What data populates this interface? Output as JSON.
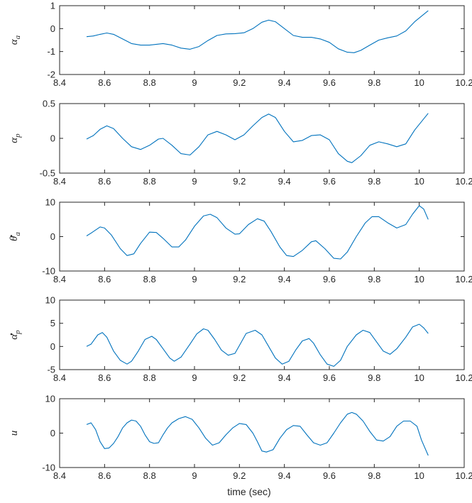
{
  "colors": {
    "line": "#0072BD",
    "axes": "#262626",
    "background": "#ffffff"
  },
  "xlabel": "time (sec)",
  "chart_data": [
    {
      "type": "line",
      "ylabel": "α",
      "ylabel_sub": "a",
      "ylabel_dot": false,
      "xlim": [
        8.4,
        10.2
      ],
      "ylim": [
        -2,
        1
      ],
      "xticks": [
        "8.4",
        "8.6",
        "8.8",
        "9",
        "9.2",
        "9.4",
        "9.6",
        "9.8",
        "10",
        "10.2"
      ],
      "yticks": [
        "-2",
        "-1",
        "0",
        "1"
      ],
      "x": [
        8.52,
        8.55,
        8.58,
        8.61,
        8.64,
        8.68,
        8.72,
        8.76,
        8.8,
        8.86,
        8.9,
        8.94,
        8.98,
        9.02,
        9.06,
        9.1,
        9.14,
        9.18,
        9.22,
        9.26,
        9.3,
        9.33,
        9.36,
        9.4,
        9.44,
        9.48,
        9.52,
        9.56,
        9.6,
        9.64,
        9.68,
        9.71,
        9.74,
        9.78,
        9.82,
        9.86,
        9.9,
        9.94,
        9.98,
        10.04
      ],
      "y": [
        -0.35,
        -0.32,
        -0.25,
        -0.19,
        -0.25,
        -0.45,
        -0.65,
        -0.72,
        -0.72,
        -0.65,
        -0.72,
        -0.85,
        -0.9,
        -0.78,
        -0.52,
        -0.3,
        -0.23,
        -0.22,
        -0.18,
        0,
        0.28,
        0.37,
        0.3,
        0,
        -0.3,
        -0.38,
        -0.38,
        -0.45,
        -0.6,
        -0.88,
        -1.03,
        -1.05,
        -0.95,
        -0.72,
        -0.5,
        -0.4,
        -0.32,
        -0.1,
        0.3,
        0.78
      ]
    },
    {
      "type": "line",
      "ylabel": "α",
      "ylabel_sub": "p",
      "ylabel_dot": false,
      "xlim": [
        8.4,
        10.2
      ],
      "ylim": [
        -0.5,
        0.5
      ],
      "xticks": [
        "8.4",
        "8.6",
        "8.8",
        "9",
        "9.2",
        "9.4",
        "9.6",
        "9.8",
        "10",
        "10.2"
      ],
      "yticks": [
        "-0.5",
        "0",
        "0.5"
      ],
      "x": [
        8.52,
        8.55,
        8.58,
        8.61,
        8.64,
        8.68,
        8.72,
        8.76,
        8.8,
        8.84,
        8.86,
        8.9,
        8.94,
        8.98,
        9.02,
        9.06,
        9.1,
        9.14,
        9.18,
        9.22,
        9.26,
        9.3,
        9.33,
        9.36,
        9.4,
        9.44,
        9.48,
        9.52,
        9.56,
        9.6,
        9.64,
        9.68,
        9.7,
        9.74,
        9.78,
        9.82,
        9.86,
        9.9,
        9.94,
        9.98,
        10.04
      ],
      "y": [
        -0.01,
        0.04,
        0.13,
        0.18,
        0.14,
        0.0,
        -0.12,
        -0.16,
        -0.1,
        -0.01,
        0.0,
        -0.1,
        -0.22,
        -0.24,
        -0.12,
        0.05,
        0.1,
        0.05,
        -0.02,
        0.05,
        0.18,
        0.3,
        0.35,
        0.3,
        0.1,
        -0.05,
        -0.03,
        0.04,
        0.05,
        -0.02,
        -0.22,
        -0.33,
        -0.35,
        -0.25,
        -0.1,
        -0.05,
        -0.08,
        -0.12,
        -0.08,
        0.12,
        0.36
      ]
    },
    {
      "type": "line",
      "ylabel": "θ",
      "ylabel_sub": "a",
      "ylabel_dot": true,
      "xlim": [
        8.4,
        10.2
      ],
      "ylim": [
        -10,
        10
      ],
      "xticks": [
        "8.4",
        "8.6",
        "8.8",
        "9",
        "9.2",
        "9.4",
        "9.6",
        "9.8",
        "10",
        "10.2"
      ],
      "yticks": [
        "-10",
        "0",
        "10"
      ],
      "x": [
        8.52,
        8.54,
        8.58,
        8.6,
        8.63,
        8.67,
        8.7,
        8.73,
        8.76,
        8.8,
        8.83,
        8.86,
        8.9,
        8.93,
        8.96,
        9.0,
        9.04,
        9.07,
        9.1,
        9.14,
        9.18,
        9.2,
        9.24,
        9.28,
        9.31,
        9.34,
        9.38,
        9.41,
        9.44,
        9.48,
        9.52,
        9.54,
        9.58,
        9.62,
        9.65,
        9.68,
        9.72,
        9.76,
        9.79,
        9.82,
        9.86,
        9.9,
        9.94,
        9.97,
        10.0,
        10.02,
        10.04
      ],
      "y": [
        0.2,
        1.0,
        2.8,
        2.5,
        0.5,
        -3.5,
        -5.5,
        -5.0,
        -2.0,
        1.3,
        1.2,
        -0.5,
        -3.0,
        -3.0,
        -1.0,
        3.0,
        6.0,
        6.5,
        5.5,
        2.5,
        0.7,
        0.8,
        3.5,
        5.2,
        4.5,
        1.5,
        -3.0,
        -5.5,
        -5.8,
        -4.0,
        -1.5,
        -1.2,
        -3.5,
        -6.3,
        -6.5,
        -4.5,
        0.0,
        4.0,
        5.8,
        5.8,
        4.0,
        2.5,
        3.5,
        6.5,
        9.0,
        8.0,
        5.0
      ]
    },
    {
      "type": "line",
      "ylabel": "α",
      "ylabel_sub": "p",
      "ylabel_dot": true,
      "xlim": [
        8.4,
        10.2
      ],
      "ylim": [
        -5,
        10
      ],
      "xticks": [
        "8.4",
        "8.6",
        "8.8",
        "9",
        "9.2",
        "9.4",
        "9.6",
        "9.8",
        "10",
        "10.2"
      ],
      "yticks": [
        "-5",
        "0",
        "5",
        "10"
      ],
      "x": [
        8.52,
        8.54,
        8.57,
        8.59,
        8.61,
        8.64,
        8.67,
        8.7,
        8.72,
        8.75,
        8.78,
        8.81,
        8.83,
        8.86,
        8.89,
        8.91,
        8.94,
        8.98,
        9.01,
        9.04,
        9.06,
        9.09,
        9.12,
        9.15,
        9.18,
        9.2,
        9.23,
        9.27,
        9.3,
        9.33,
        9.36,
        9.39,
        9.42,
        9.45,
        9.48,
        9.51,
        9.53,
        9.56,
        9.59,
        9.62,
        9.65,
        9.68,
        9.72,
        9.75,
        9.78,
        9.81,
        9.84,
        9.87,
        9.9,
        9.94,
        9.97,
        10.0,
        10.02,
        10.04
      ],
      "y": [
        0.0,
        0.5,
        2.5,
        3.0,
        2.0,
        -1.0,
        -3.0,
        -3.8,
        -3.2,
        -1.0,
        1.5,
        2.2,
        1.5,
        -0.5,
        -2.5,
        -3.2,
        -2.3,
        0.5,
        2.7,
        3.8,
        3.5,
        1.5,
        -0.8,
        -1.9,
        -1.5,
        0.2,
        2.8,
        3.5,
        2.5,
        0.0,
        -2.5,
        -3.8,
        -3.2,
        -0.8,
        1.2,
        1.7,
        0.7,
        -1.8,
        -3.8,
        -4.3,
        -3.0,
        0.0,
        2.5,
        3.5,
        3.0,
        1.0,
        -1.0,
        -1.7,
        -0.5,
        2.0,
        4.2,
        4.8,
        4.0,
        2.8
      ]
    },
    {
      "type": "line",
      "ylabel": "u",
      "ylabel_sub": "",
      "ylabel_dot": false,
      "xlim": [
        8.4,
        10.2
      ],
      "ylim": [
        -10,
        10
      ],
      "xticks": [
        "8.4",
        "8.6",
        "8.8",
        "9",
        "9.2",
        "9.4",
        "9.6",
        "9.8",
        "10",
        "10.2"
      ],
      "yticks": [
        "-10",
        "0",
        "10"
      ],
      "x": [
        8.52,
        8.54,
        8.56,
        8.58,
        8.6,
        8.62,
        8.64,
        8.66,
        8.68,
        8.7,
        8.72,
        8.74,
        8.76,
        8.78,
        8.8,
        8.82,
        8.84,
        8.86,
        8.88,
        8.9,
        8.93,
        8.96,
        8.99,
        9.02,
        9.05,
        9.08,
        9.11,
        9.14,
        9.17,
        9.2,
        9.23,
        9.26,
        9.28,
        9.3,
        9.32,
        9.35,
        9.38,
        9.41,
        9.44,
        9.47,
        9.5,
        9.53,
        9.56,
        9.59,
        9.62,
        9.65,
        9.68,
        9.7,
        9.72,
        9.75,
        9.78,
        9.81,
        9.84,
        9.87,
        9.9,
        9.93,
        9.96,
        9.99,
        10.01,
        10.04
      ],
      "y": [
        2.5,
        3.0,
        1.0,
        -2.5,
        -4.5,
        -4.3,
        -3.0,
        -1.0,
        1.5,
        3.0,
        3.8,
        3.5,
        2.0,
        -0.5,
        -2.5,
        -3.0,
        -2.8,
        -0.5,
        1.5,
        3.0,
        4.2,
        4.8,
        4.0,
        1.5,
        -1.5,
        -3.5,
        -2.8,
        -0.5,
        1.5,
        2.8,
        2.5,
        0.0,
        -2.5,
        -5.2,
        -5.5,
        -4.8,
        -1.5,
        1.0,
        2.2,
        2.0,
        -0.5,
        -2.8,
        -3.5,
        -2.8,
        0.0,
        3.0,
        5.5,
        6.0,
        5.5,
        3.5,
        0.5,
        -2.0,
        -2.3,
        -1.0,
        2.0,
        3.5,
        3.5,
        2.0,
        -2.0,
        -6.5
      ]
    }
  ]
}
